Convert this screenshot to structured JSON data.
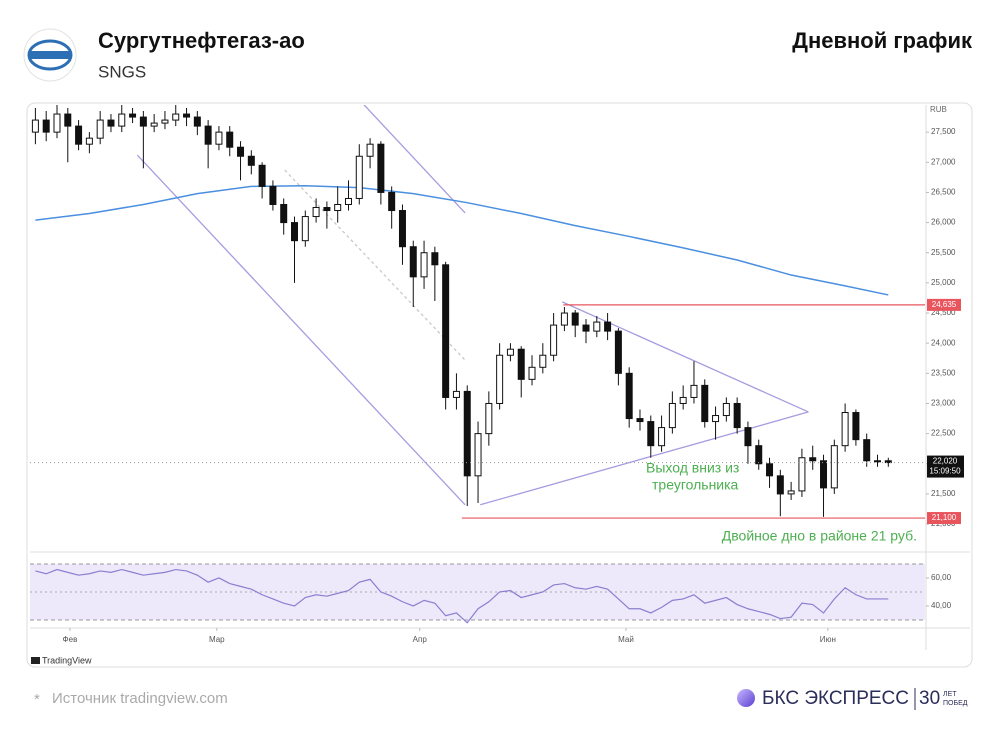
{
  "header": {
    "title": "Сургутнефтегаз-ао",
    "ticker": "SNGS",
    "chart_kind": "Дневной график"
  },
  "chart_data": {
    "type": "candlestick",
    "currency": "RUB",
    "open": [
      27500,
      27700,
      27500,
      27800,
      27600,
      27300,
      27400,
      27700,
      27600,
      27800,
      27750,
      27600,
      27650,
      27700,
      27800,
      27750,
      27600,
      27300,
      27500,
      27250,
      27100,
      26950,
      26600,
      26300,
      26000,
      25700,
      26100,
      26250,
      26200,
      26300,
      26400,
      27100,
      27300,
      26500,
      26200,
      25600,
      25100,
      25500,
      25300,
      23100,
      23200,
      21800,
      22500,
      23000,
      23800,
      23900,
      23400,
      23600,
      23800,
      24300,
      24500,
      24300,
      24200,
      24350,
      24200,
      23500,
      22750,
      22700,
      22300,
      22600,
      23000,
      23100,
      23300,
      22700,
      22800,
      23000,
      22600,
      22300,
      22000,
      21800,
      21500,
      21550,
      22100,
      22050,
      21600,
      22300,
      22850,
      22400,
      22050,
      22050
    ],
    "high": [
      27900,
      27850,
      27950,
      27900,
      27700,
      27500,
      27850,
      27800,
      27950,
      27900,
      27850,
      27800,
      27850,
      27950,
      27900,
      27850,
      27700,
      27600,
      27600,
      27350,
      27200,
      27000,
      26700,
      26400,
      26100,
      26200,
      26400,
      26350,
      26600,
      26700,
      27300,
      27400,
      27350,
      26600,
      26300,
      25700,
      25700,
      25600,
      25350,
      23500,
      23300,
      22700,
      23200,
      24000,
      24000,
      23950,
      23800,
      24000,
      24500,
      24600,
      24550,
      24400,
      24450,
      24500,
      24250,
      23600,
      22900,
      22800,
      22800,
      23200,
      23300,
      23700,
      23400,
      22950,
      23100,
      23100,
      22700,
      22400,
      22100,
      21900,
      21700,
      22250,
      22300,
      22150,
      22400,
      23000,
      22900,
      22500,
      22150,
      22100
    ],
    "low": [
      27300,
      27350,
      27400,
      27000,
      27200,
      27150,
      27300,
      27500,
      27500,
      27650,
      26900,
      27500,
      27550,
      27600,
      27600,
      27450,
      26900,
      27200,
      27100,
      26700,
      26800,
      26400,
      26200,
      25800,
      25000,
      25600,
      26000,
      25900,
      26000,
      26200,
      26300,
      26900,
      26300,
      25900,
      25300,
      24600,
      24900,
      24700,
      22900,
      22900,
      21300,
      21350,
      22300,
      22900,
      23700,
      23100,
      23300,
      23500,
      23700,
      24200,
      24100,
      24000,
      24100,
      24050,
      23300,
      22600,
      22550,
      22100,
      22200,
      22500,
      22900,
      23000,
      22600,
      22400,
      22700,
      22500,
      22000,
      21900,
      21600,
      21130,
      21400,
      21450,
      21900,
      21120,
      21500,
      22200,
      22300,
      21950,
      21950,
      21950
    ],
    "close": [
      27700,
      27500,
      27800,
      27600,
      27300,
      27400,
      27700,
      27600,
      27800,
      27750,
      27600,
      27650,
      27700,
      27800,
      27750,
      27600,
      27300,
      27500,
      27250,
      27100,
      26950,
      26600,
      26300,
      26000,
      25700,
      26100,
      26250,
      26200,
      26300,
      26400,
      27100,
      27300,
      26500,
      26200,
      25600,
      25100,
      25500,
      25300,
      23100,
      23200,
      21800,
      22500,
      23000,
      23800,
      23900,
      23400,
      23600,
      23800,
      24300,
      24500,
      24300,
      24200,
      24350,
      24200,
      23500,
      22750,
      22700,
      22300,
      22600,
      23000,
      23100,
      23300,
      22700,
      22800,
      23000,
      22600,
      22300,
      22000,
      21800,
      21500,
      21550,
      22100,
      22050,
      21600,
      22300,
      22850,
      22400,
      22050,
      22050,
      22020
    ],
    "xlim": [
      -0.5,
      82.4
    ],
    "ylim": [
      20570,
      27950
    ],
    "yticks": [
      {
        "value": 21000,
        "label": "21,000"
      },
      {
        "value": 21500,
        "label": "21,500"
      },
      {
        "value": 22000,
        "label": "22,000"
      },
      {
        "value": 22500,
        "label": "22,500"
      },
      {
        "value": 23000,
        "label": "23,000"
      },
      {
        "value": 23500,
        "label": "23,500"
      },
      {
        "value": 24000,
        "label": "24,000"
      },
      {
        "value": 24500,
        "label": "24,500"
      },
      {
        "value": 25000,
        "label": "25,000"
      },
      {
        "value": 25500,
        "label": "25,500"
      },
      {
        "value": 26000,
        "label": "26,000"
      },
      {
        "value": 26500,
        "label": "26,500"
      },
      {
        "value": 27000,
        "label": "27,000"
      },
      {
        "value": 27500,
        "label": "27,500"
      }
    ],
    "xticks": [
      {
        "value": 3.2,
        "label": "Фев"
      },
      {
        "value": 16.8,
        "label": "Мар"
      },
      {
        "value": 35.6,
        "label": "Апр"
      },
      {
        "value": 54.7,
        "label": "Май"
      },
      {
        "value": 73.4,
        "label": "Июн"
      }
    ],
    "moving_average": {
      "color": "#4a8fe0",
      "x": [
        0,
        5,
        10,
        15,
        20,
        25,
        30,
        35,
        40,
        45,
        50,
        55,
        60,
        65,
        70,
        75,
        79
      ],
      "values": [
        26040,
        26150,
        26300,
        26480,
        26600,
        26610,
        26580,
        26480,
        26330,
        26150,
        25950,
        25770,
        25580,
        25380,
        25130,
        24950,
        24800
      ]
    },
    "levels": [
      {
        "value": 24635,
        "label": "24,635",
        "from": 48.9,
        "color": "#e8555d"
      },
      {
        "value": 21100,
        "label": "21,100",
        "from": 39.5,
        "color": "#e8555d"
      }
    ],
    "last_price": {
      "value": 22020,
      "label": "22,020",
      "time": "15:09:50"
    },
    "trendlines": [
      {
        "x": [
          9.44,
          39.8
        ],
        "y": [
          27120,
          21320
        ],
        "color": "#a99be0"
      },
      {
        "x": [
          30.3,
          39.8
        ],
        "y": [
          27980,
          26160
        ],
        "color": "#a99be0"
      },
      {
        "x": [
          48.8,
          71.6
        ],
        "y": [
          24685,
          22860
        ],
        "color": "#a99be0"
      },
      {
        "x": [
          41.2,
          71.6
        ],
        "y": [
          21320,
          22860
        ],
        "color": "#a99be0"
      },
      {
        "x": [
          23.1,
          39.8
        ],
        "y": [
          26870,
          23720
        ],
        "color": "#c8c8c8",
        "dashed": true
      }
    ],
    "annotations": {
      "breakout": [
        "Выход вниз из",
        "треугольника"
      ],
      "double_bottom": "Двойное дно в районе 21 руб."
    },
    "rsi": {
      "color": "#8a7fd0",
      "values": [
        65,
        63,
        66,
        64,
        62,
        63,
        65,
        64,
        66,
        64,
        62,
        63,
        64,
        66,
        65,
        62,
        57,
        60,
        56,
        54,
        52,
        48,
        45,
        42,
        40,
        46,
        48,
        47,
        49,
        51,
        57,
        59,
        50,
        47,
        43,
        40,
        44,
        42,
        33,
        35,
        28,
        38,
        43,
        50,
        51,
        46,
        48,
        50,
        55,
        56,
        53,
        52,
        54,
        52,
        45,
        38,
        38,
        35,
        39,
        44,
        45,
        48,
        42,
        44,
        46,
        41,
        38,
        36,
        34,
        31,
        32,
        42,
        41,
        35,
        45,
        53,
        48,
        45,
        45,
        45
      ],
      "ylim": [
        26.4,
        76.4
      ],
      "yticks": [
        {
          "value": 60,
          "label": "60,00"
        },
        {
          "value": 40,
          "label": "40,00"
        }
      ],
      "band": [
        30,
        70
      ],
      "midline": 50
    }
  },
  "tradingview": "TradingView",
  "footer": {
    "mark": "*",
    "source": "Источник tradingview.com",
    "brand": "БКС ЭКСПРЕСС",
    "anniversary": "30",
    "anniversary_note": [
      "ЛЕТ",
      "ПОБЕД"
    ]
  }
}
